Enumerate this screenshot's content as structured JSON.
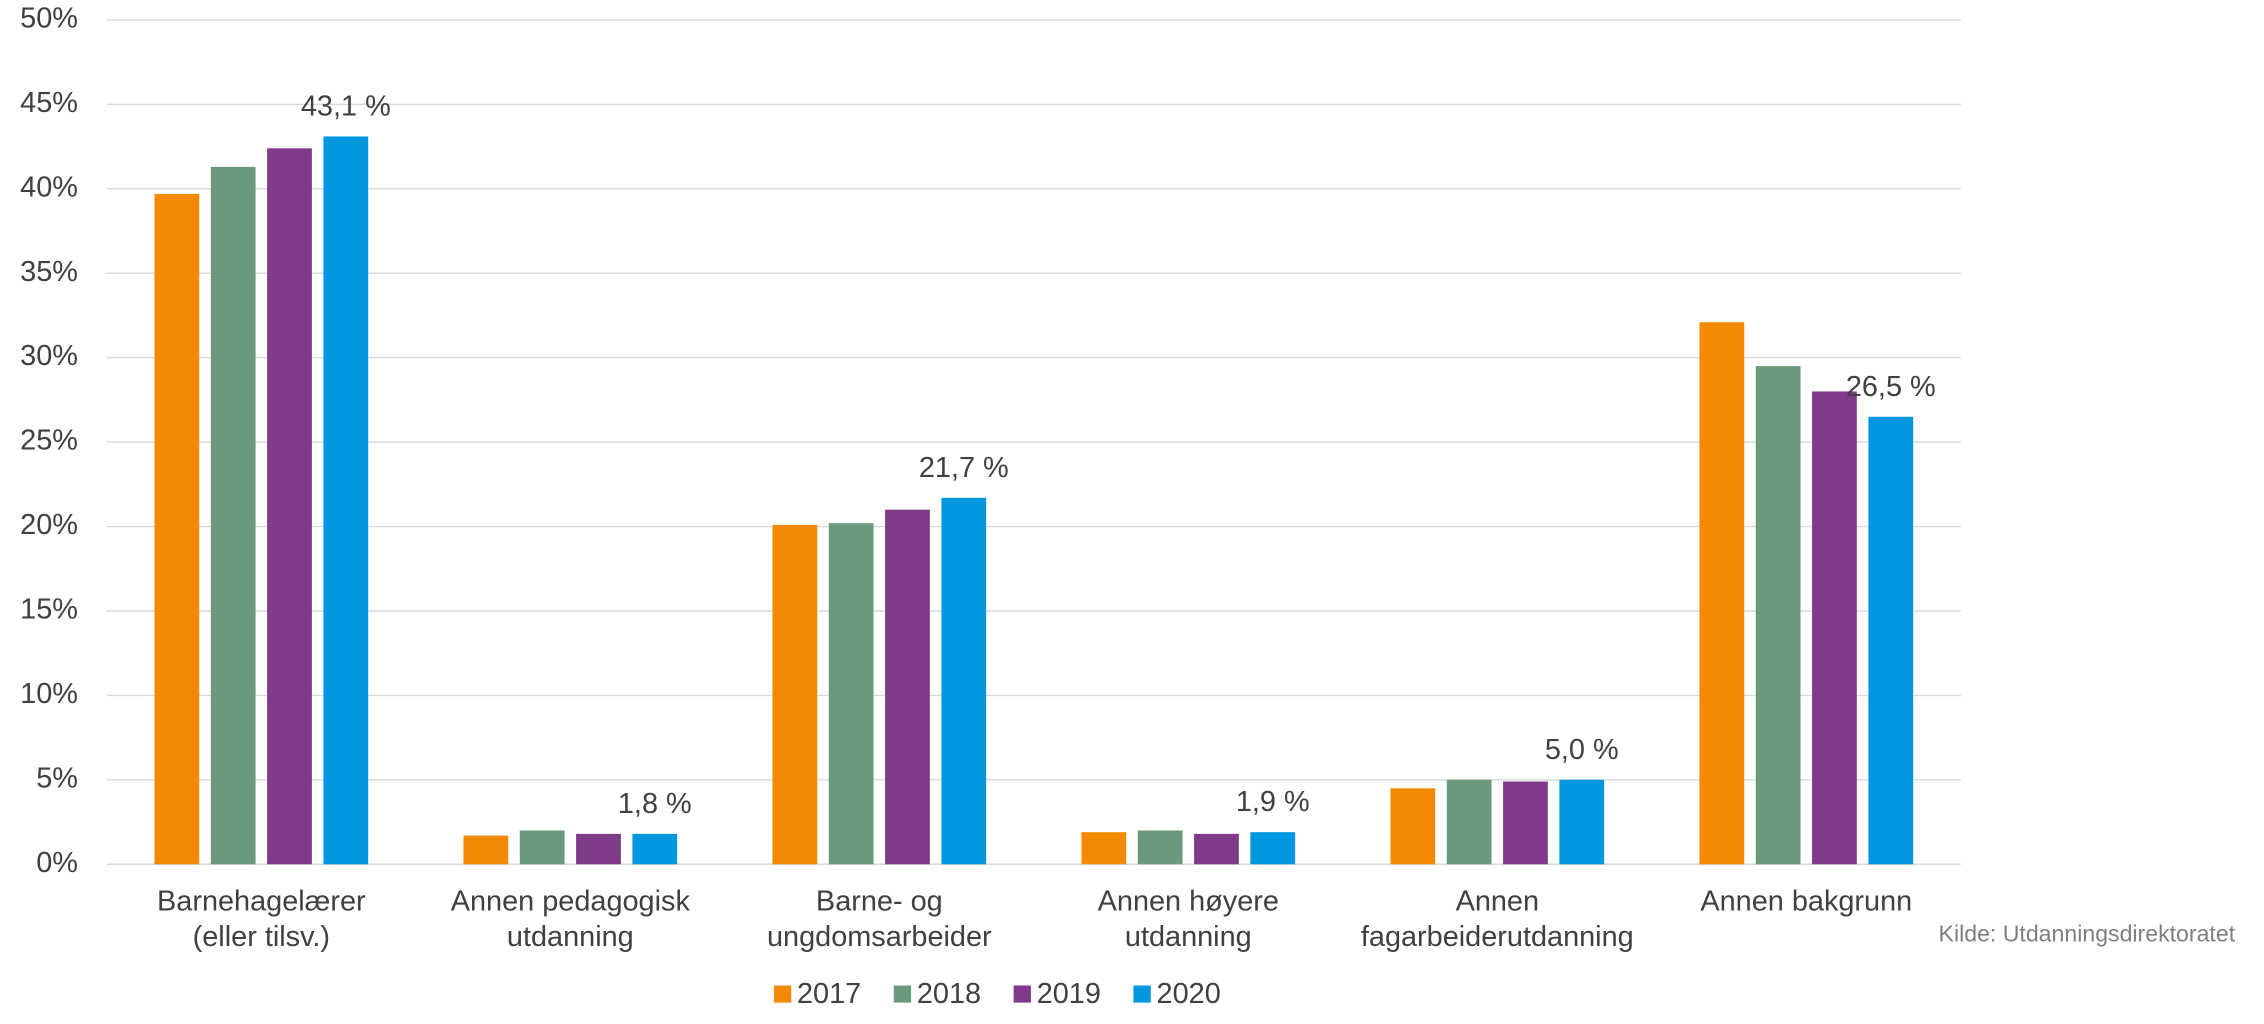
{
  "chart_data": {
    "type": "bar",
    "categories": [
      [
        "Barnehagelærer",
        "(eller tilsv.)"
      ],
      [
        "Annen pedagogisk",
        "utdanning"
      ],
      [
        "Barne- og",
        "ungdomsarbeider"
      ],
      [
        "Annen høyere",
        "utdanning"
      ],
      [
        "Annen",
        "fagarbeiderutdanning"
      ],
      [
        "Annen bakgrunn"
      ]
    ],
    "series": [
      {
        "name": "2017",
        "color": "#f18a00",
        "values": [
          39.7,
          1.7,
          20.1,
          1.9,
          4.5,
          32.1
        ]
      },
      {
        "name": "2018",
        "color": "#6a9a7b",
        "values": [
          41.3,
          2.0,
          20.2,
          2.0,
          5.0,
          29.5
        ]
      },
      {
        "name": "2019",
        "color": "#803a8a",
        "values": [
          42.4,
          1.8,
          21.0,
          1.8,
          4.9,
          28.0
        ]
      },
      {
        "name": "2020",
        "color": "#0096e0",
        "values": [
          43.1,
          1.8,
          21.7,
          1.9,
          5.0,
          26.5
        ],
        "value_labels": [
          "43,1 %",
          "1,8 %",
          "21,7 %",
          "1,9 %",
          "5,0 %",
          "26,5 %"
        ]
      }
    ],
    "ylim": [
      0,
      50
    ],
    "yticks": [
      {
        "value": 0,
        "label": "0%"
      },
      {
        "value": 5,
        "label": "5%"
      },
      {
        "value": 10,
        "label": "10%"
      },
      {
        "value": 15,
        "label": "15%"
      },
      {
        "value": 20,
        "label": "20%"
      },
      {
        "value": 25,
        "label": "25%"
      },
      {
        "value": 30,
        "label": "30%"
      },
      {
        "value": 35,
        "label": "35%"
      },
      {
        "value": 40,
        "label": "40%"
      },
      {
        "value": 45,
        "label": "45%"
      },
      {
        "value": 50,
        "label": "50%"
      }
    ],
    "grid": true,
    "legend": "bottom",
    "source": "Kilde: Utdanningsdirektoratet"
  }
}
